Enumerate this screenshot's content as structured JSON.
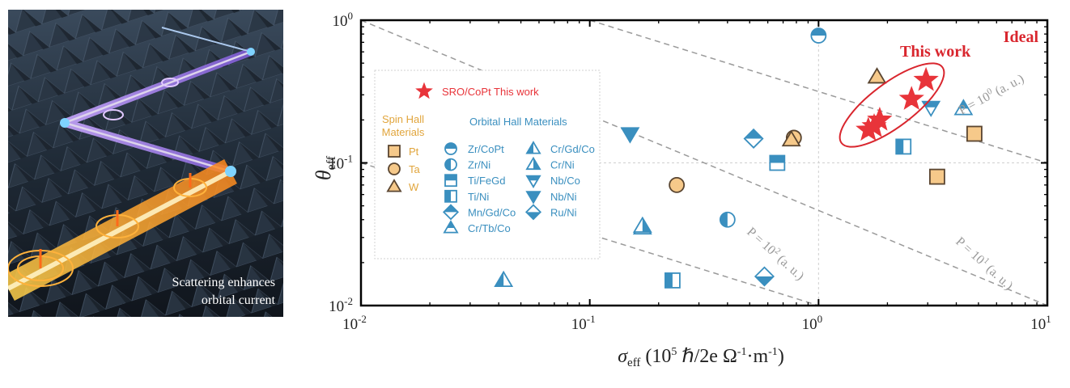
{
  "illustration": {
    "caption_line1": "Scattering enhances",
    "caption_line2": "orbital current"
  },
  "colors": {
    "spin_hall": "#f6c98a",
    "spin_hall_stroke": "#5a4530",
    "orbital_hall": "#3a8fbf",
    "star": "#e8343a",
    "annotation": "#d9262e",
    "guide": "#9a9a9a"
  },
  "annotations": {
    "ideal": "Ideal",
    "this_work": "This work",
    "p_lines": [
      {
        "label": "P = 10",
        "exp": "0",
        "suffix": " (a. u.)"
      },
      {
        "label": "P = 10",
        "exp": "1",
        "suffix": " (a. u.)"
      },
      {
        "label": "P = 10",
        "exp": "2",
        "suffix": " (a. u.)"
      }
    ]
  },
  "legend": {
    "star_label": "SRO/CoPt This work",
    "spin_title_line1": "Spin Hall",
    "spin_title_line2": "Materials",
    "orbital_title": "Orbital Hall Materials",
    "spin_items": [
      {
        "name": "Pt",
        "marker": "square"
      },
      {
        "name": "Ta",
        "marker": "circle"
      },
      {
        "name": "W",
        "marker": "triangle"
      }
    ],
    "orbital_col1": [
      {
        "name": "Zr/CoPt",
        "marker": "circle-top"
      },
      {
        "name": "Zr/Ni",
        "marker": "circle-left"
      },
      {
        "name": "Ti/FeGd",
        "marker": "square-top"
      },
      {
        "name": "Ti/Ni",
        "marker": "square-left"
      },
      {
        "name": "Mn/Gd/Co",
        "marker": "diamond-top"
      },
      {
        "name": "Cr/Tb/Co",
        "marker": "triangle-top"
      }
    ],
    "orbital_col2": [
      {
        "name": "Cr/Gd/Co",
        "marker": "triangle-left"
      },
      {
        "name": "Cr/Ni",
        "marker": "triangle-right"
      },
      {
        "name": "Nb/Co",
        "marker": "tridown-top"
      },
      {
        "name": "Nb/Ni",
        "marker": "tridown-full"
      },
      {
        "name": "Ru/Ni",
        "marker": "diamond-bottom"
      }
    ]
  },
  "chart_data": {
    "type": "scatter",
    "xscale": "log",
    "yscale": "log",
    "xlim": [
      0.01,
      10
    ],
    "ylim": [
      0.01,
      1
    ],
    "xticks": [
      {
        "base": "10",
        "exp": "-2"
      },
      {
        "base": "10",
        "exp": "-1"
      },
      {
        "base": "10",
        "exp": "0"
      },
      {
        "base": "10",
        "exp": "1"
      }
    ],
    "yticks": [
      {
        "base": "10",
        "exp": "-2"
      },
      {
        "base": "10",
        "exp": "-1"
      },
      {
        "base": "10",
        "exp": "0"
      }
    ],
    "xlabel": {
      "sym": "σ",
      "sub": "eff",
      "unit_a": " (10",
      "unit_exp": "5",
      "unit_b": " ℏ/2e Ω",
      "unit_exp2": "-1",
      "unit_c": "·m",
      "unit_exp3": "-1",
      "unit_d": ")"
    },
    "ylabel": {
      "sym": "θ",
      "sub": "eff"
    },
    "grid": false,
    "reference_lines": {
      "x": 1,
      "y": 0.1
    },
    "series": [
      {
        "name": "Pt",
        "group": "spin",
        "marker": "square",
        "points": [
          [
            3.3,
            0.08
          ],
          [
            4.8,
            0.16
          ]
        ]
      },
      {
        "name": "Ta",
        "group": "spin",
        "marker": "circle",
        "points": [
          [
            0.24,
            0.07
          ],
          [
            0.78,
            0.15
          ]
        ]
      },
      {
        "name": "W",
        "group": "spin",
        "marker": "triangle",
        "points": [
          [
            0.76,
            0.145
          ],
          [
            1.8,
            0.4
          ]
        ]
      },
      {
        "name": "Zr/CoPt",
        "group": "orbital",
        "marker": "circle-top",
        "points": [
          [
            1.0,
            0.78
          ]
        ]
      },
      {
        "name": "Zr/Ni",
        "group": "orbital",
        "marker": "circle-left",
        "points": [
          [
            0.4,
            0.04
          ]
        ]
      },
      {
        "name": "Ti/FeGd",
        "group": "orbital",
        "marker": "square-top",
        "points": [
          [
            0.66,
            0.1
          ]
        ]
      },
      {
        "name": "Ti/Ni",
        "group": "orbital",
        "marker": "square-left",
        "points": [
          [
            0.23,
            0.015
          ],
          [
            2.35,
            0.13
          ]
        ]
      },
      {
        "name": "Mn/Gd/Co",
        "group": "orbital",
        "marker": "diamond-top",
        "points": [
          [
            0.52,
            0.148
          ]
        ]
      },
      {
        "name": "Cr/Tb/Co",
        "group": "orbital",
        "marker": "triangle-top",
        "points": [
          [
            0.17,
            0.035
          ],
          [
            4.3,
            0.24
          ]
        ]
      },
      {
        "name": "Cr/Gd/Co",
        "group": "orbital",
        "marker": "triangle-left",
        "points": [
          [
            0.042,
            0.015
          ]
        ]
      },
      {
        "name": "Cr/Ni",
        "group": "orbital",
        "marker": "triangle-right",
        "points": [
          [
            0.17,
            0.036
          ]
        ]
      },
      {
        "name": "Nb/Co",
        "group": "orbital",
        "marker": "tridown-top",
        "points": [
          [
            3.1,
            0.245
          ]
        ]
      },
      {
        "name": "Nb/Ni",
        "group": "orbital",
        "marker": "tridown-full",
        "points": [
          [
            0.15,
            0.16
          ]
        ]
      },
      {
        "name": "Ru/Ni",
        "group": "orbital",
        "marker": "diamond-bottom",
        "points": [
          [
            0.58,
            0.016
          ]
        ]
      },
      {
        "name": "SRO/CoPt This work",
        "group": "this-work",
        "marker": "star",
        "points": [
          [
            1.65,
            0.17
          ],
          [
            1.75,
            0.18
          ],
          [
            1.85,
            0.2
          ],
          [
            2.55,
            0.28
          ],
          [
            2.95,
            0.38
          ]
        ]
      }
    ]
  }
}
